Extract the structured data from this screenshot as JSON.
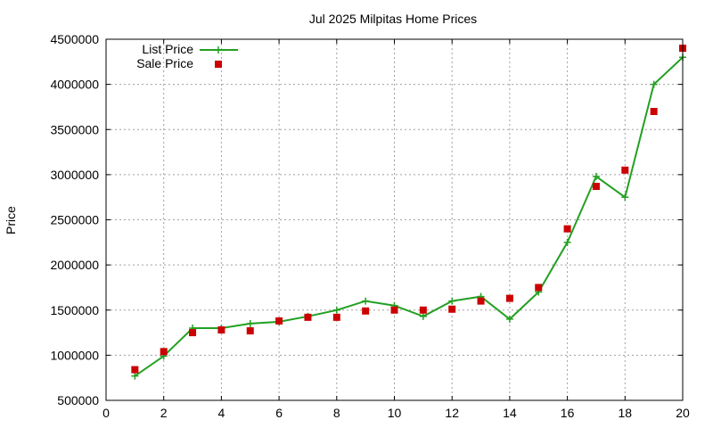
{
  "chart_data": {
    "type": "line",
    "title": "Jul 2025 Milpitas Home Prices",
    "xlabel": "",
    "ylabel": "Price",
    "xlim": [
      0,
      20
    ],
    "ylim": [
      500000,
      4500000
    ],
    "x_ticks": [
      0,
      2,
      4,
      6,
      8,
      10,
      12,
      14,
      16,
      18,
      20
    ],
    "y_ticks": [
      500000,
      1000000,
      1500000,
      2000000,
      2500000,
      3000000,
      3500000,
      4000000,
      4500000
    ],
    "grid": true,
    "legend_position": "top-left",
    "series": [
      {
        "name": "List Price",
        "style": "line-with-plus-markers",
        "color": "#22a022",
        "x": [
          1,
          2,
          3,
          4,
          5,
          6,
          7,
          8,
          9,
          10,
          11,
          12,
          13,
          14,
          15,
          16,
          17,
          18,
          19,
          20
        ],
        "values": [
          770000,
          990000,
          1300000,
          1300000,
          1350000,
          1370000,
          1430000,
          1500000,
          1600000,
          1550000,
          1430000,
          1600000,
          1650000,
          1400000,
          1700000,
          2250000,
          2980000,
          2750000,
          4000000,
          4300000
        ]
      },
      {
        "name": "Sale Price",
        "style": "square-markers",
        "color": "#cc0000",
        "x": [
          1,
          2,
          3,
          4,
          5,
          6,
          7,
          8,
          9,
          10,
          11,
          12,
          13,
          14,
          15,
          16,
          17,
          18,
          19,
          20
        ],
        "values": [
          840000,
          1040000,
          1250000,
          1280000,
          1270000,
          1380000,
          1420000,
          1420000,
          1490000,
          1500000,
          1500000,
          1510000,
          1600000,
          1630000,
          1750000,
          2400000,
          2870000,
          3050000,
          3700000,
          4400000
        ]
      }
    ]
  }
}
